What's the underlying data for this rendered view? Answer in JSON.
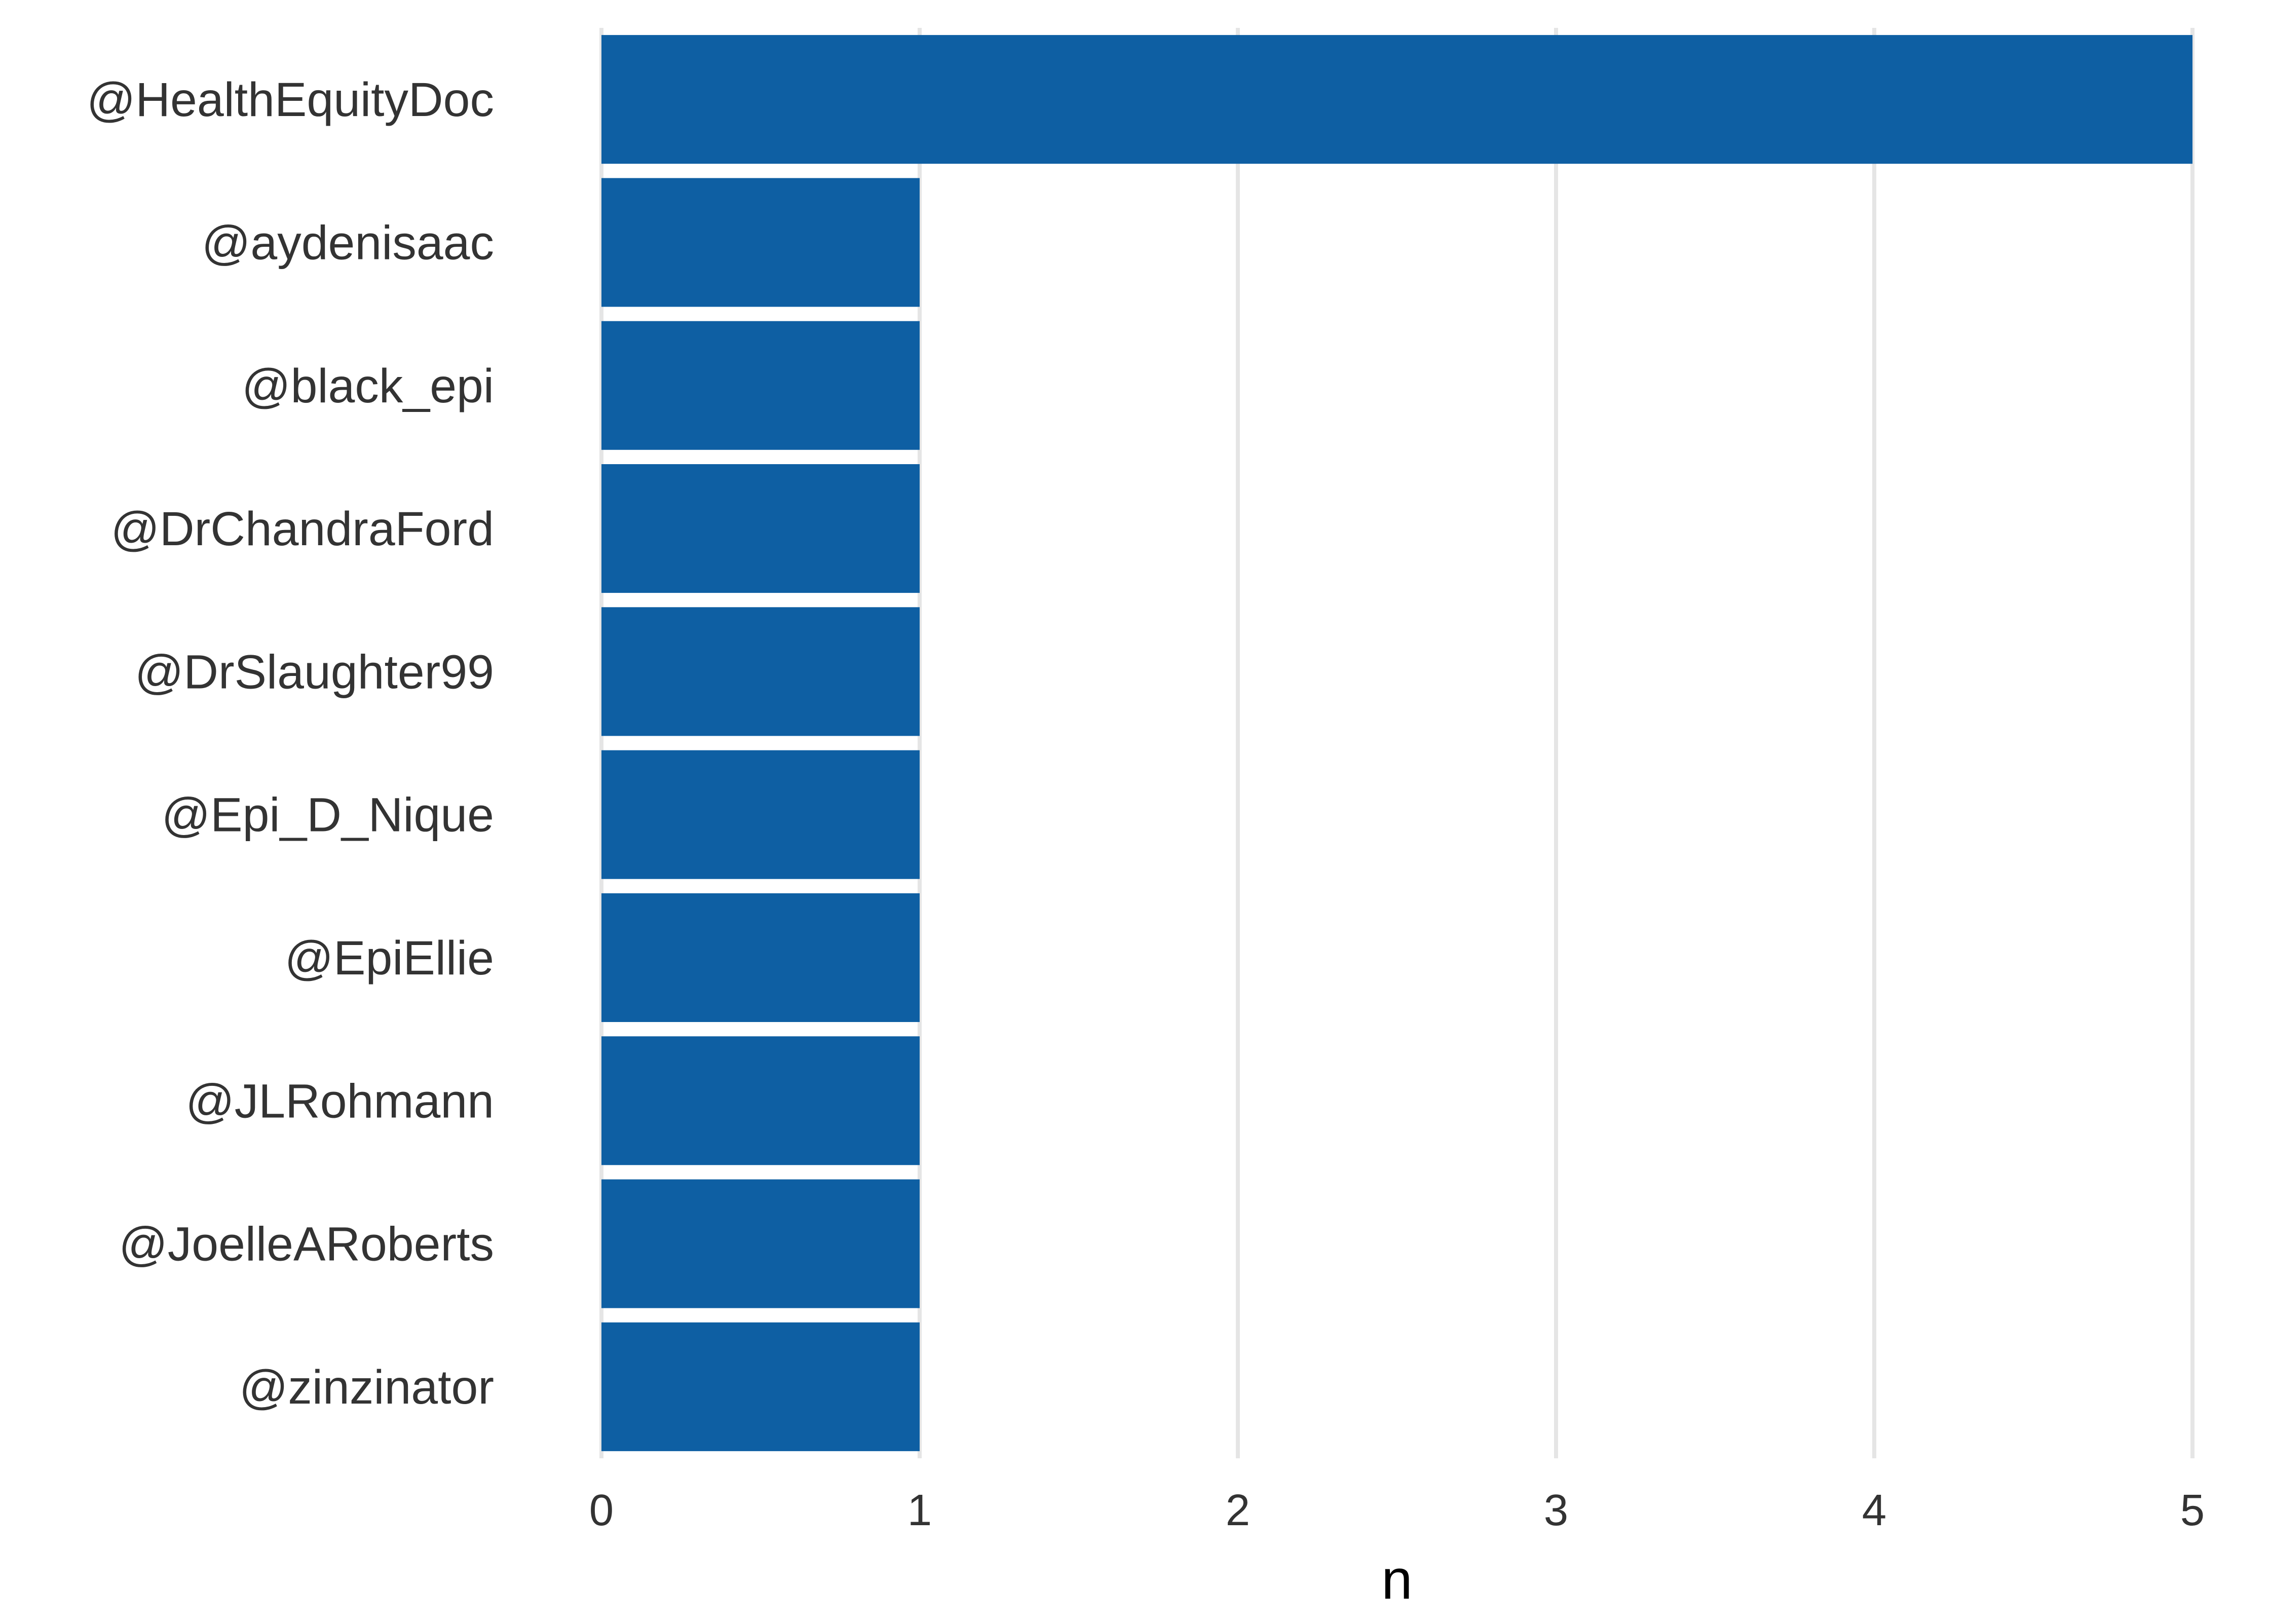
{
  "chart_data": {
    "type": "bar",
    "orientation": "horizontal",
    "categories": [
      "@HealthEquityDoc",
      "@aydenisaac",
      "@black_epi",
      "@DrChandraFord",
      "@DrSlaughter99",
      "@Epi_D_Nique",
      "@EpiEllie",
      "@JLRohmann",
      "@JoelleARoberts",
      "@zinzinator"
    ],
    "values": [
      5,
      1,
      1,
      1,
      1,
      1,
      1,
      1,
      1,
      1
    ],
    "title": "",
    "xlabel": "n",
    "ylabel": "",
    "xlim": [
      0,
      5
    ],
    "xticks": [
      "0",
      "1",
      "2",
      "3",
      "4",
      "5"
    ],
    "grid": "vertical-major",
    "legend": "none",
    "bar_color": "#0e5fa3"
  }
}
